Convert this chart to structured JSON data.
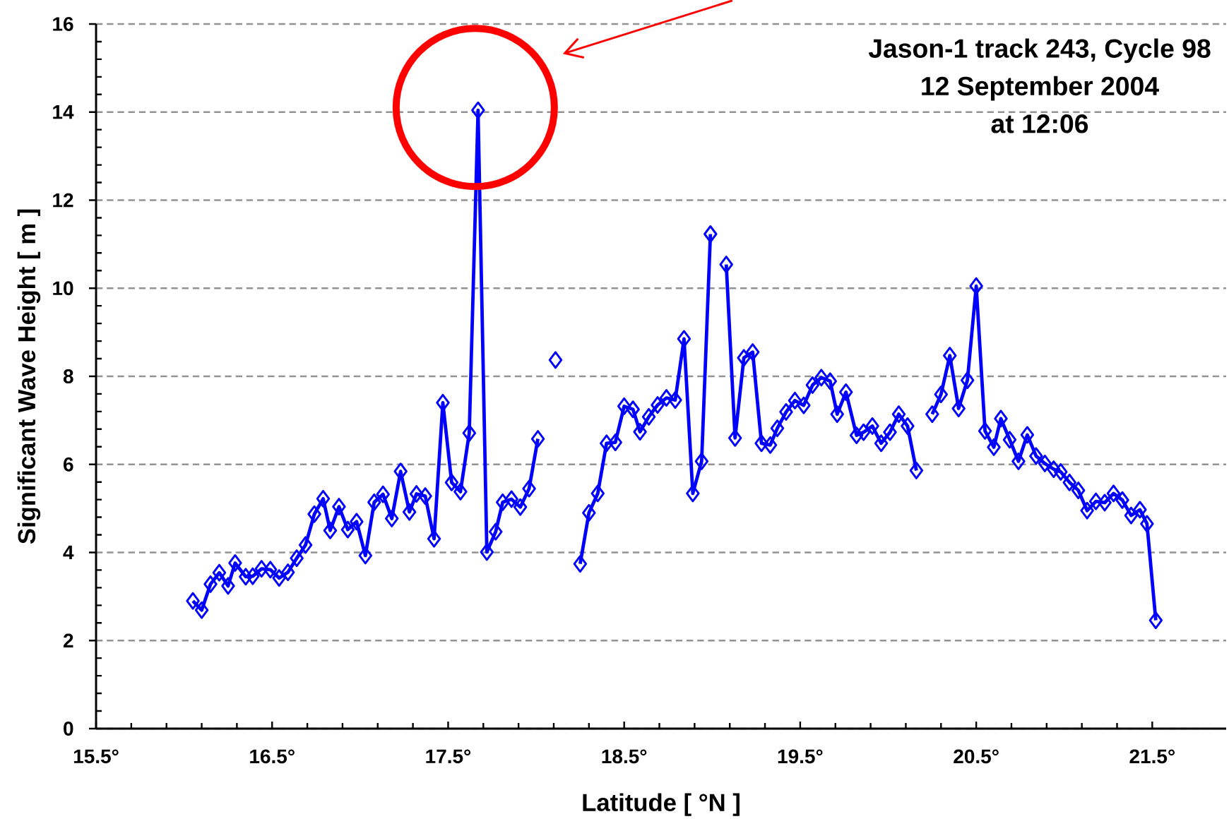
{
  "chart_data": {
    "type": "line",
    "annotations": [
      "Jason-1 track 243, Cycle 98",
      "12 September 2004",
      "at 12:06"
    ],
    "xlabel": "Latitude [ °N ]",
    "ylabel": "Significant Wave Height [ m ]",
    "x": [
      16.05,
      16.1,
      16.15,
      16.2,
      16.25,
      16.29,
      16.35,
      16.39,
      16.44,
      16.49,
      16.54,
      16.59,
      16.64,
      16.69,
      16.74,
      16.79,
      16.83,
      16.88,
      16.93,
      16.98,
      17.03,
      17.08,
      17.13,
      17.18,
      17.23,
      17.28,
      17.32,
      17.37,
      17.42,
      17.47,
      17.52,
      17.57,
      17.62,
      17.67,
      17.72,
      17.77,
      17.81,
      17.86,
      17.91,
      17.96,
      18.01,
      18.06,
      18.11,
      18.16,
      18.2,
      18.25,
      18.3,
      18.35,
      18.4,
      18.45,
      18.5,
      18.55,
      18.59,
      18.64,
      18.69,
      18.74,
      18.79,
      18.84,
      18.89,
      18.94,
      18.99,
      19.03,
      19.08,
      19.13,
      19.18,
      19.23,
      19.28,
      19.33,
      19.37,
      19.42,
      19.47,
      19.52,
      19.57,
      19.62,
      19.67,
      19.71,
      19.76,
      19.82,
      19.86,
      19.91,
      19.96,
      20.01,
      20.06,
      20.11,
      20.16,
      20.21,
      20.25,
      20.3,
      20.35,
      20.4,
      20.45,
      20.5,
      20.55,
      20.6,
      20.64,
      20.69,
      20.74,
      20.79,
      20.84,
      20.89,
      20.94,
      20.98,
      21.03,
      21.08,
      21.13,
      21.18,
      21.23,
      21.28,
      21.33,
      21.38,
      21.43,
      21.47,
      21.52
    ],
    "values": [
      2.9,
      2.69,
      3.28,
      3.54,
      3.24,
      3.76,
      3.45,
      3.46,
      3.63,
      3.61,
      3.42,
      3.55,
      3.87,
      4.17,
      4.87,
      5.22,
      4.5,
      5.04,
      4.52,
      4.7,
      3.93,
      5.14,
      5.32,
      4.77,
      5.84,
      4.92,
      5.33,
      5.28,
      4.31,
      7.4,
      5.59,
      5.38,
      6.71,
      14.04,
      4.01,
      4.47,
      5.14,
      5.21,
      5.03,
      5.45,
      6.58,
      null,
      8.37,
      null,
      null,
      3.74,
      4.9,
      5.34,
      6.48,
      6.5,
      7.32,
      7.25,
      6.74,
      7.08,
      7.35,
      7.51,
      7.46,
      8.85,
      5.34,
      6.07,
      11.23,
      null,
      10.54,
      6.6,
      8.42,
      8.55,
      6.48,
      6.44,
      6.82,
      7.19,
      7.45,
      7.34,
      7.8,
      7.97,
      7.89,
      7.14,
      7.64,
      6.66,
      6.73,
      6.87,
      6.48,
      6.73,
      7.14,
      6.87,
      5.86,
      null,
      7.14,
      7.59,
      8.47,
      7.27,
      7.91,
      10.05,
      6.76,
      6.39,
      7.04,
      6.56,
      6.07,
      6.67,
      6.19,
      6.02,
      5.89,
      5.83,
      5.59,
      5.41,
      4.95,
      5.16,
      5.13,
      5.34,
      5.19,
      4.84,
      4.97,
      4.65,
      2.46
    ],
    "color": "#0000ff",
    "marker": "diamond",
    "line_style": "solid",
    "xlim": [
      15.5,
      21.92
    ],
    "ylim": [
      0,
      16
    ],
    "xticks": [
      {
        "value": 15.5,
        "label": "15.5°"
      },
      {
        "value": 16.5,
        "label": "16.5°"
      },
      {
        "value": 17.5,
        "label": "17.5°"
      },
      {
        "value": 18.5,
        "label": "18.5°"
      },
      {
        "value": 19.5,
        "label": "19.5°"
      },
      {
        "value": 20.5,
        "label": "20.5°"
      },
      {
        "value": 21.5,
        "label": "21.5°"
      }
    ],
    "yticks": [
      0,
      2,
      4,
      6,
      8,
      10,
      12,
      14,
      16
    ],
    "grid": "y"
  }
}
